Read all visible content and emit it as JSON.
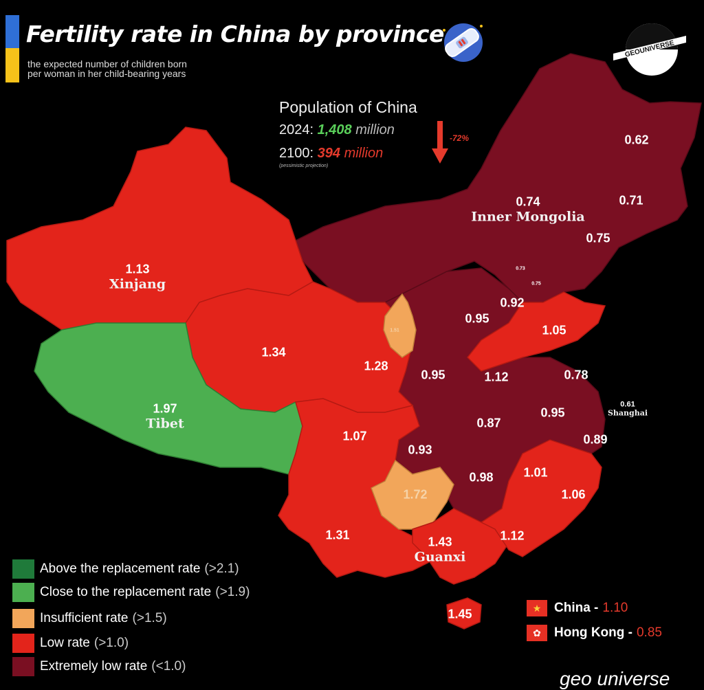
{
  "header": {
    "title": "Fertility rate in China by province",
    "subtitle_line1": "the expected number of children born",
    "subtitle_line2": "per woman in her child-bearing years"
  },
  "brand": {
    "logo_text": "GEOUNIVERSE",
    "credit": "geo universe"
  },
  "population": {
    "title": "Population of China",
    "year_2024": "2024:",
    "value_2024": "1,408",
    "unit_2024": "million",
    "year_2100": "2100:",
    "value_2100": "394",
    "unit_2100": "million",
    "note": "(pessimistic projection)",
    "change": "-72%"
  },
  "colors": {
    "above_replacement": "#1f7a3a",
    "close_to_replacement": "#4caf50",
    "insufficient": "#f2a65a",
    "low": "#e3241b",
    "extremely_low": "#7a0f22",
    "flag_blue": "#2f6fd6",
    "flag_yellow": "#f6c21a"
  },
  "regions": [
    {
      "name": "Xinjang",
      "rate": "1.13",
      "category": "low"
    },
    {
      "name": "Tibet",
      "rate": "1.97",
      "category": "close_to_replacement"
    },
    {
      "name": "Inner Mongolia",
      "rate": "0.74",
      "category": "extremely_low"
    },
    {
      "name": "Guanxi",
      "rate": "1.43",
      "category": "low"
    },
    {
      "name": "Shanghai",
      "rate": "0.61",
      "category": "extremely_low"
    },
    {
      "name": "",
      "rate": "0.62",
      "category": "extremely_low"
    },
    {
      "name": "",
      "rate": "0.71",
      "category": "extremely_low"
    },
    {
      "name": "",
      "rate": "0.75",
      "category": "extremely_low"
    },
    {
      "name": "",
      "rate": "0.73",
      "category": "extremely_low"
    },
    {
      "name": "",
      "rate": "0.75",
      "category": "extremely_low"
    },
    {
      "name": "",
      "rate": "0.92",
      "category": "extremely_low"
    },
    {
      "name": "",
      "rate": "0.95",
      "category": "extremely_low"
    },
    {
      "name": "",
      "rate": "1.05",
      "category": "low"
    },
    {
      "name": "",
      "rate": "1.34",
      "category": "low"
    },
    {
      "name": "",
      "rate": "1.51",
      "category": "insufficient"
    },
    {
      "name": "",
      "rate": "1.28",
      "category": "low"
    },
    {
      "name": "",
      "rate": "0.95",
      "category": "extremely_low"
    },
    {
      "name": "",
      "rate": "1.12",
      "category": "low"
    },
    {
      "name": "",
      "rate": "0.78",
      "category": "extremely_low"
    },
    {
      "name": "",
      "rate": "0.87",
      "category": "extremely_low"
    },
    {
      "name": "",
      "rate": "0.95",
      "category": "extremely_low"
    },
    {
      "name": "",
      "rate": "1.07",
      "category": "low"
    },
    {
      "name": "",
      "rate": "0.93",
      "category": "extremely_low"
    },
    {
      "name": "",
      "rate": "0.89",
      "category": "extremely_low"
    },
    {
      "name": "",
      "rate": "1.72",
      "category": "insufficient"
    },
    {
      "name": "",
      "rate": "0.98",
      "category": "extremely_low"
    },
    {
      "name": "",
      "rate": "1.01",
      "category": "low"
    },
    {
      "name": "",
      "rate": "1.06",
      "category": "low"
    },
    {
      "name": "",
      "rate": "1.31",
      "category": "low"
    },
    {
      "name": "",
      "rate": "1.12",
      "category": "low"
    },
    {
      "name": "",
      "rate": "1.45",
      "category": "low"
    }
  ],
  "legend": [
    {
      "label": "Above the replacement rate",
      "threshold": "(>2.1)",
      "color": "#1f7a3a"
    },
    {
      "label": "Close to the replacement rate",
      "threshold": "(>1.9)",
      "color": "#4caf50"
    },
    {
      "label": "Insufficient rate",
      "threshold": "(>1.5)",
      "color": "#f2a65a"
    },
    {
      "label": "Low rate",
      "threshold": "(>1.0)",
      "color": "#e3241b"
    },
    {
      "label": "Extremely low rate",
      "threshold": "(<1.0)",
      "color": "#7a0f22"
    }
  ],
  "summary": [
    {
      "name": "China -",
      "value": "1.10"
    },
    {
      "name": "Hong Kong -",
      "value": "0.85"
    }
  ]
}
